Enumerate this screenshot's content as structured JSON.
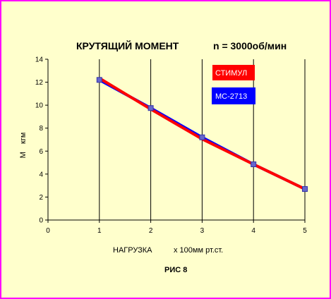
{
  "chart_data": {
    "type": "line",
    "title": "КРУТЯЩИЙ МОМЕНТ",
    "subtitle": "n = 3000об/мин",
    "xlabel_main": "НАГРУЗКА",
    "xlabel_unit": "х  100мм рт.ст.",
    "ylabel_main": "М",
    "ylabel_unit": "кгм",
    "caption": "РИС  8",
    "xlim": [
      0,
      5
    ],
    "ylim": [
      0,
      14
    ],
    "x_ticks": [
      "0",
      "1",
      "2",
      "3",
      "4",
      "5"
    ],
    "y_ticks": [
      "0",
      "2",
      "4",
      "6",
      "8",
      "10",
      "12",
      "14"
    ],
    "grid": "vertical",
    "series": [
      {
        "name": "МС-2713",
        "color": "#0000ff",
        "marker": "square",
        "points": [
          [
            1,
            12.2
          ],
          [
            2,
            9.75
          ],
          [
            3,
            7.2
          ],
          [
            4,
            4.85
          ],
          [
            5,
            2.7
          ]
        ]
      },
      {
        "name": "СТИМУЛ",
        "color": "#ff0000",
        "marker": "none",
        "points": [
          [
            1,
            12.35
          ],
          [
            2,
            9.65
          ],
          [
            3,
            7.05
          ],
          [
            4,
            4.85
          ],
          [
            5,
            2.7
          ]
        ]
      }
    ],
    "legend": [
      {
        "label": "СТИМУЛ",
        "bg": "#ff0000"
      },
      {
        "label": "МС-2713",
        "bg": "#0000ff"
      }
    ],
    "legend_placement": "top-right"
  }
}
